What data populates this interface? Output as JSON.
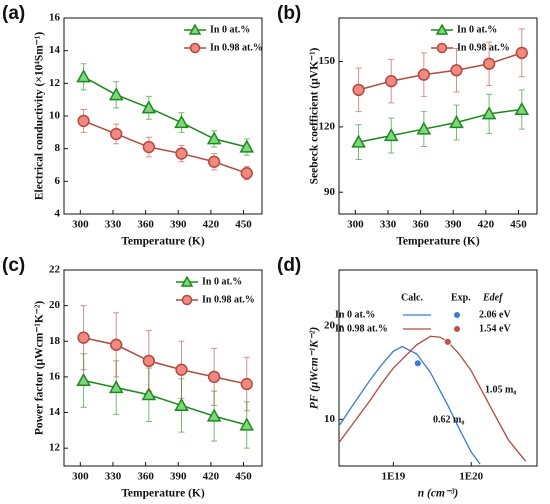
{
  "chart_data": [
    {
      "type": "line",
      "panel": "(a)",
      "xlabel": "Temperature (K)",
      "ylabel": "Electrical conductivity (×10⁴Sm⁻¹)",
      "x": [
        303,
        333,
        363,
        393,
        423,
        453
      ],
      "xlim": [
        285,
        467
      ],
      "xticks": [
        300,
        330,
        360,
        390,
        420,
        450
      ],
      "ylim": [
        4,
        16
      ],
      "yticks": [
        4,
        6,
        8,
        10,
        12,
        14,
        16
      ],
      "series": [
        {
          "name": "In 0 at.%",
          "color": "#1a8a1a",
          "fill": "#7fd67f",
          "marker": "triangle",
          "values": [
            12.4,
            11.3,
            10.5,
            9.6,
            8.6,
            8.1
          ],
          "errors": [
            0.8,
            0.8,
            0.7,
            0.6,
            0.5,
            0.5
          ]
        },
        {
          "name": "In 0.98 at.%",
          "color": "#b5483f",
          "fill": "#f08a80",
          "marker": "circle",
          "values": [
            9.7,
            8.9,
            8.1,
            7.7,
            7.2,
            6.5
          ],
          "errors": [
            0.7,
            0.6,
            0.6,
            0.5,
            0.5,
            0.4
          ]
        }
      ]
    },
    {
      "type": "line",
      "panel": "(b)",
      "xlabel": "Temperature (K)",
      "ylabel": "Seebeck coefficient (μVK⁻¹)",
      "x": [
        303,
        333,
        363,
        393,
        423,
        453
      ],
      "xlim": [
        285,
        467
      ],
      "xticks": [
        300,
        330,
        360,
        390,
        420,
        450
      ],
      "ylim": [
        80,
        170
      ],
      "yticks": [
        90,
        120,
        150
      ],
      "series": [
        {
          "name": "In 0 at.%",
          "color": "#1a8a1a",
          "fill": "#7fd67f",
          "marker": "triangle",
          "values": [
            113,
            116,
            119,
            122,
            126,
            128
          ],
          "errors": [
            8,
            8,
            8,
            8,
            9,
            9
          ]
        },
        {
          "name": "In 0.98 at.%",
          "color": "#b5483f",
          "fill": "#f08a80",
          "marker": "circle",
          "values": [
            137,
            141,
            144,
            146,
            149,
            154
          ],
          "errors": [
            10,
            10,
            10,
            10,
            10,
            11
          ]
        }
      ]
    },
    {
      "type": "line",
      "panel": "(c)",
      "xlabel": "Temperature (K)",
      "ylabel": "Power factor (μWcm⁻¹K⁻²)",
      "x": [
        303,
        333,
        363,
        393,
        423,
        453
      ],
      "xlim": [
        285,
        467
      ],
      "xticks": [
        300,
        330,
        360,
        390,
        420,
        450
      ],
      "ylim": [
        11,
        22
      ],
      "yticks": [
        12,
        14,
        16,
        18,
        20,
        22
      ],
      "series": [
        {
          "name": "In 0 at.%",
          "color": "#1a8a1a",
          "fill": "#7fd67f",
          "marker": "triangle",
          "values": [
            15.8,
            15.4,
            15.0,
            14.4,
            13.8,
            13.3
          ],
          "errors": [
            1.5,
            1.5,
            1.5,
            1.5,
            1.4,
            1.3
          ]
        },
        {
          "name": "In 0.98 at.%",
          "color": "#b5483f",
          "fill": "#f08a80",
          "marker": "circle",
          "values": [
            18.2,
            17.8,
            16.9,
            16.4,
            16.0,
            15.6
          ],
          "errors": [
            1.8,
            1.8,
            1.7,
            1.6,
            1.6,
            1.5
          ]
        }
      ]
    },
    {
      "type": "curve",
      "panel": "(d)",
      "xlabel": "n (cm⁻³)",
      "ylabel": "PF (μWcm⁻¹K⁻²)",
      "xscale": "log",
      "xlim": [
        2e+18,
        7e+20
      ],
      "xticks": [
        {
          "value": 1e+19,
          "label": "1E19"
        },
        {
          "value": 1e+20,
          "label": "1E20"
        }
      ],
      "ylim": [
        5,
        26
      ],
      "yticks": [
        10,
        20
      ],
      "series": [
        {
          "name": "In 0 at.%",
          "color": "#3a7bd5",
          "x": [
            2e+18,
            3e+18,
            5e+18,
            7e+18,
            1e+19,
            1.3e+19,
            2e+19,
            3e+19,
            5e+19,
            7e+19,
            1e+20,
            1.3e+20
          ],
          "values": [
            9.3,
            11.5,
            14.2,
            15.8,
            17.3,
            17.8,
            17.0,
            15.0,
            11.5,
            9.0,
            6.5,
            5.2
          ]
        },
        {
          "name": "In 0.98 at.%",
          "color": "#b5483f",
          "x": [
            2e+18,
            3e+18,
            5e+18,
            7e+18,
            1e+19,
            2e+19,
            3e+19,
            4e+19,
            5e+19,
            7e+19,
            1e+20,
            2e+20,
            3e+20,
            5e+20
          ],
          "values": [
            7.5,
            9.5,
            12.0,
            13.8,
            15.5,
            18.0,
            18.9,
            18.8,
            18.3,
            17.0,
            15.2,
            10.5,
            7.8,
            5.5
          ]
        }
      ],
      "points": [
        {
          "x": 2.06e+19,
          "y": 16,
          "color": "#3a7bd5"
        },
        {
          "x": 5e+19,
          "y": 18.3,
          "color": "#c0504d"
        }
      ],
      "table": {
        "headers": [
          "Calc.",
          "Exp.",
          "Edef"
        ],
        "values": [
          "2.06 eV",
          "1.54 eV"
        ]
      },
      "annotations": [
        "1.05 m₀",
        "0.62 m₀"
      ]
    }
  ]
}
